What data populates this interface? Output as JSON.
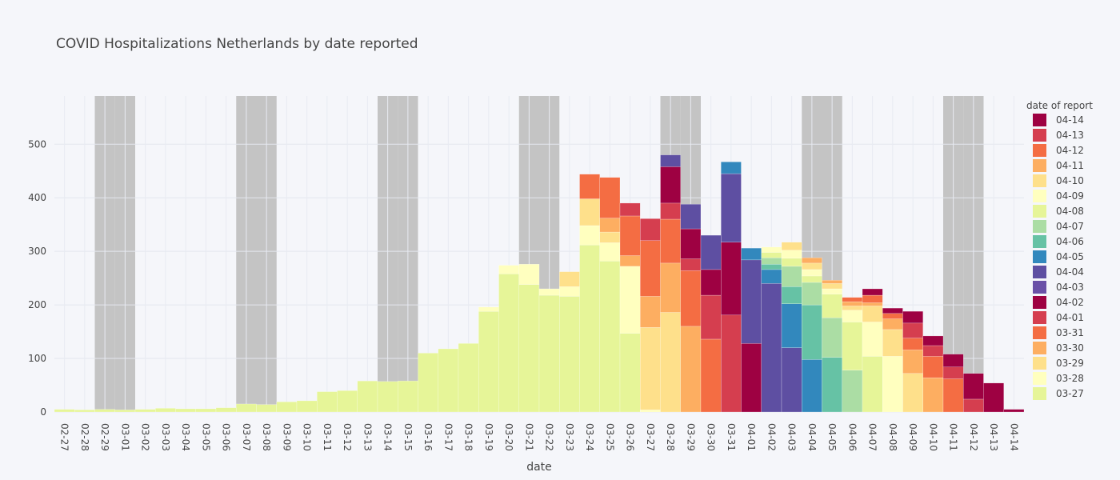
{
  "chart_data": {
    "type": "bar",
    "title": "COVID Hospitalizations Netherlands by date reported",
    "xlabel": "date",
    "ylabel": "",
    "barmode": "stack",
    "ylim": [
      0,
      590
    ],
    "yticks": [
      0,
      100,
      200,
      300,
      400,
      500
    ],
    "legend_title": "date of report",
    "legend_placement": "right",
    "weekend_shading_color": "#c4c4c4",
    "categories": [
      "02-27",
      "02-28",
      "02-29",
      "03-01",
      "03-02",
      "03-03",
      "03-04",
      "03-05",
      "03-06",
      "03-07",
      "03-08",
      "03-09",
      "03-10",
      "03-11",
      "03-12",
      "03-13",
      "03-14",
      "03-15",
      "03-16",
      "03-17",
      "03-18",
      "03-19",
      "03-20",
      "03-21",
      "03-22",
      "03-23",
      "03-24",
      "03-25",
      "03-26",
      "03-27",
      "03-28",
      "03-29",
      "03-30",
      "03-31",
      "04-01",
      "04-02",
      "04-03",
      "04-04",
      "04-05",
      "04-06",
      "04-07",
      "04-08",
      "04-09",
      "04-10",
      "04-11",
      "04-12",
      "04-13",
      "04-14"
    ],
    "weekend_categories": [
      "02-29",
      "03-01",
      "03-07",
      "03-08",
      "03-14",
      "03-15",
      "03-21",
      "03-22",
      "03-28",
      "03-29",
      "04-04",
      "04-05",
      "04-11",
      "04-12"
    ],
    "series": [
      {
        "name": "03-27",
        "color": "#e6f598",
        "values": [
          5,
          4,
          5,
          4,
          5,
          7,
          6,
          6,
          8,
          15,
          14,
          19,
          21,
          38,
          40,
          58,
          57,
          58,
          110,
          118,
          128,
          188,
          258,
          238,
          218,
          216,
          312,
          282,
          147,
          0,
          0,
          0,
          0,
          0,
          0,
          0,
          0,
          0,
          0,
          0,
          0,
          0,
          0,
          0,
          0,
          0,
          0,
          0
        ]
      },
      {
        "name": "03-28",
        "color": "#ffffbf",
        "values": [
          0,
          0,
          0,
          0,
          0,
          0,
          0,
          0,
          0,
          0,
          0,
          0,
          0,
          0,
          0,
          0,
          0,
          0,
          0,
          0,
          0,
          8,
          16,
          38,
          12,
          18,
          36,
          34,
          125,
          4,
          0,
          0,
          0,
          0,
          0,
          0,
          0,
          0,
          0,
          0,
          0,
          0,
          0,
          0,
          0,
          0,
          0,
          0
        ]
      },
      {
        "name": "03-29",
        "color": "#fee08b",
        "values": [
          0,
          0,
          0,
          0,
          0,
          0,
          0,
          0,
          0,
          0,
          0,
          0,
          0,
          0,
          0,
          0,
          0,
          0,
          0,
          0,
          0,
          0,
          0,
          0,
          0,
          28,
          50,
          20,
          0,
          154,
          186,
          0,
          0,
          0,
          0,
          0,
          0,
          0,
          0,
          0,
          0,
          0,
          0,
          0,
          0,
          0,
          0,
          0
        ]
      },
      {
        "name": "03-30",
        "color": "#fdae61",
        "values": [
          0,
          0,
          0,
          0,
          0,
          0,
          0,
          0,
          0,
          0,
          0,
          0,
          0,
          0,
          0,
          0,
          0,
          0,
          0,
          0,
          0,
          0,
          0,
          0,
          0,
          0,
          0,
          26,
          20,
          58,
          92,
          160,
          0,
          0,
          0,
          0,
          0,
          0,
          0,
          0,
          0,
          0,
          0,
          0,
          0,
          0,
          0,
          0
        ]
      },
      {
        "name": "03-31",
        "color": "#f46d43",
        "values": [
          0,
          0,
          0,
          0,
          0,
          0,
          0,
          0,
          0,
          0,
          0,
          0,
          0,
          0,
          0,
          0,
          0,
          0,
          0,
          0,
          0,
          0,
          0,
          0,
          0,
          0,
          46,
          76,
          74,
          104,
          82,
          104,
          136,
          0,
          0,
          0,
          0,
          0,
          0,
          0,
          0,
          0,
          0,
          0,
          0,
          0,
          0,
          0
        ]
      },
      {
        "name": "04-01",
        "color": "#d53e4f",
        "values": [
          0,
          0,
          0,
          0,
          0,
          0,
          0,
          0,
          0,
          0,
          0,
          0,
          0,
          0,
          0,
          0,
          0,
          0,
          0,
          0,
          0,
          0,
          0,
          0,
          0,
          0,
          0,
          0,
          24,
          41,
          30,
          22,
          82,
          181,
          0,
          0,
          0,
          0,
          0,
          0,
          0,
          0,
          0,
          0,
          0,
          0,
          0,
          0
        ]
      },
      {
        "name": "04-02",
        "color": "#9e0142",
        "values": [
          0,
          0,
          0,
          0,
          0,
          0,
          0,
          0,
          0,
          0,
          0,
          0,
          0,
          0,
          0,
          0,
          0,
          0,
          0,
          0,
          0,
          0,
          0,
          0,
          0,
          0,
          0,
          0,
          0,
          0,
          68,
          56,
          48,
          136,
          128,
          0,
          0,
          0,
          0,
          0,
          0,
          0,
          0,
          0,
          0,
          0,
          0,
          0
        ]
      },
      {
        "name": "04-03",
        "color": "#6a50a7",
        "values": [
          0,
          0,
          0,
          0,
          0,
          0,
          0,
          0,
          0,
          0,
          0,
          0,
          0,
          0,
          0,
          0,
          0,
          0,
          0,
          0,
          0,
          0,
          0,
          0,
          0,
          0,
          0,
          0,
          0,
          0,
          0,
          0,
          0,
          0,
          0,
          0,
          0,
          0,
          0,
          0,
          0,
          0,
          0,
          0,
          0,
          0,
          0,
          0
        ]
      },
      {
        "name": "04-04",
        "color": "#5e4fa2",
        "values": [
          0,
          0,
          0,
          0,
          0,
          0,
          0,
          0,
          0,
          0,
          0,
          0,
          0,
          0,
          0,
          0,
          0,
          0,
          0,
          0,
          0,
          0,
          0,
          0,
          0,
          0,
          0,
          0,
          0,
          0,
          22,
          46,
          64,
          128,
          156,
          240,
          120,
          0,
          0,
          0,
          0,
          0,
          0,
          0,
          0,
          0,
          0,
          0
        ]
      },
      {
        "name": "04-05",
        "color": "#3288bd",
        "values": [
          0,
          0,
          0,
          0,
          0,
          0,
          0,
          0,
          0,
          0,
          0,
          0,
          0,
          0,
          0,
          0,
          0,
          0,
          0,
          0,
          0,
          0,
          0,
          0,
          0,
          0,
          0,
          0,
          0,
          0,
          0,
          0,
          0,
          22,
          22,
          26,
          82,
          98,
          0,
          0,
          0,
          0,
          0,
          0,
          0,
          0,
          0,
          0
        ]
      },
      {
        "name": "04-06",
        "color": "#66c2a5",
        "values": [
          0,
          0,
          0,
          0,
          0,
          0,
          0,
          0,
          0,
          0,
          0,
          0,
          0,
          0,
          0,
          0,
          0,
          0,
          0,
          0,
          0,
          0,
          0,
          0,
          0,
          0,
          0,
          0,
          0,
          0,
          0,
          0,
          0,
          0,
          0,
          10,
          32,
          102,
          102,
          0,
          0,
          0,
          0,
          0,
          0,
          0,
          0,
          0
        ]
      },
      {
        "name": "04-07",
        "color": "#abdda4",
        "values": [
          0,
          0,
          0,
          0,
          0,
          0,
          0,
          0,
          0,
          0,
          0,
          0,
          0,
          0,
          0,
          0,
          0,
          0,
          0,
          0,
          0,
          0,
          0,
          0,
          0,
          0,
          0,
          0,
          0,
          0,
          0,
          0,
          0,
          0,
          0,
          12,
          38,
          42,
          74,
          78,
          0,
          0,
          0,
          0,
          0,
          0,
          0,
          0
        ]
      },
      {
        "name": "04-08",
        "color": "#e6f598",
        "values": [
          0,
          0,
          0,
          0,
          0,
          0,
          0,
          0,
          0,
          0,
          0,
          0,
          0,
          0,
          0,
          0,
          0,
          0,
          0,
          0,
          0,
          0,
          0,
          0,
          0,
          0,
          0,
          0,
          0,
          0,
          0,
          0,
          0,
          0,
          0,
          10,
          15,
          12,
          44,
          90,
          104,
          0,
          0,
          0,
          0,
          0,
          0,
          0
        ]
      },
      {
        "name": "04-09",
        "color": "#ffffbf",
        "values": [
          0,
          0,
          0,
          0,
          0,
          0,
          0,
          0,
          0,
          0,
          0,
          0,
          0,
          0,
          0,
          0,
          0,
          0,
          0,
          0,
          0,
          0,
          0,
          0,
          0,
          0,
          0,
          0,
          0,
          0,
          0,
          0,
          0,
          0,
          0,
          10,
          15,
          12,
          10,
          22,
          64,
          104,
          0,
          0,
          0,
          0,
          0,
          0
        ]
      },
      {
        "name": "04-10",
        "color": "#fee08b",
        "values": [
          0,
          0,
          0,
          0,
          0,
          0,
          0,
          0,
          0,
          0,
          0,
          0,
          0,
          0,
          0,
          0,
          0,
          0,
          0,
          0,
          0,
          0,
          0,
          0,
          0,
          0,
          0,
          0,
          0,
          0,
          0,
          0,
          0,
          0,
          0,
          0,
          15,
          12,
          10,
          8,
          30,
          50,
          72,
          0,
          0,
          0,
          0,
          0
        ]
      },
      {
        "name": "04-11",
        "color": "#fdae61",
        "values": [
          0,
          0,
          0,
          0,
          0,
          0,
          0,
          0,
          0,
          0,
          0,
          0,
          0,
          0,
          0,
          0,
          0,
          0,
          0,
          0,
          0,
          0,
          0,
          0,
          0,
          0,
          0,
          0,
          0,
          0,
          0,
          0,
          0,
          0,
          0,
          0,
          0,
          10,
          6,
          8,
          6,
          20,
          44,
          64,
          0,
          0,
          0,
          0
        ]
      },
      {
        "name": "04-12",
        "color": "#f46d43",
        "values": [
          0,
          0,
          0,
          0,
          0,
          0,
          0,
          0,
          0,
          0,
          0,
          0,
          0,
          0,
          0,
          0,
          0,
          0,
          0,
          0,
          0,
          0,
          0,
          0,
          0,
          0,
          0,
          0,
          0,
          0,
          0,
          0,
          0,
          0,
          0,
          0,
          0,
          0,
          0,
          8,
          14,
          10,
          22,
          40,
          62,
          0,
          0,
          0
        ]
      },
      {
        "name": "04-13",
        "color": "#d53e4f",
        "values": [
          0,
          0,
          0,
          0,
          0,
          0,
          0,
          0,
          0,
          0,
          0,
          0,
          0,
          0,
          0,
          0,
          0,
          0,
          0,
          0,
          0,
          0,
          0,
          0,
          0,
          0,
          0,
          0,
          0,
          0,
          0,
          0,
          0,
          0,
          0,
          0,
          0,
          0,
          0,
          0,
          0,
          0,
          28,
          20,
          22,
          24,
          0,
          0
        ]
      },
      {
        "name": "04-14",
        "color": "#9e0142",
        "values": [
          0,
          0,
          0,
          0,
          0,
          0,
          0,
          0,
          0,
          0,
          0,
          0,
          0,
          0,
          0,
          0,
          0,
          0,
          0,
          0,
          0,
          0,
          0,
          0,
          0,
          0,
          0,
          0,
          0,
          0,
          0,
          0,
          0,
          0,
          0,
          0,
          0,
          0,
          0,
          0,
          12,
          10,
          22,
          18,
          24,
          48,
          54,
          5
        ]
      }
    ]
  }
}
